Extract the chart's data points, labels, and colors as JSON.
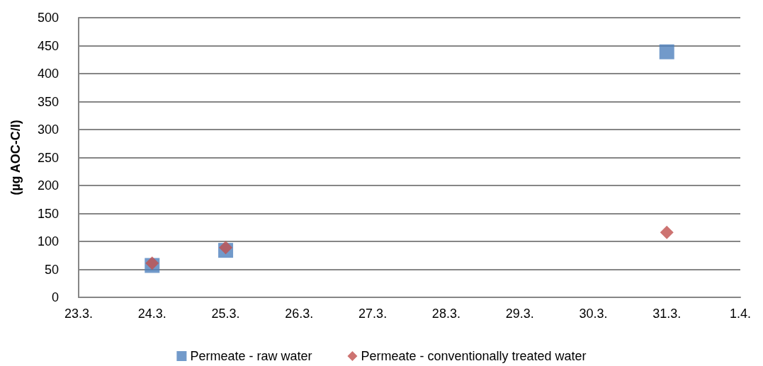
{
  "chart_data": {
    "type": "scatter",
    "ylabel": "(µg AOC-C/l)",
    "x": [
      "--03-24",
      "--03-25",
      "--03-31"
    ],
    "series": [
      {
        "name": "Permeate - raw water",
        "color": "#4f81bd",
        "marker": "square",
        "values": [
          57,
          84,
          439
        ]
      },
      {
        "name": "Permeate - conventionally treated water",
        "color": "#c0504d",
        "marker": "diamond",
        "values": [
          61,
          89,
          116
        ]
      }
    ],
    "xlim": [
      "--03-23",
      "--04-01"
    ],
    "xticks": [
      {
        "value": "--03-23",
        "label": "23.3."
      },
      {
        "value": "--03-24",
        "label": "24.3."
      },
      {
        "value": "--03-25",
        "label": "25.3."
      },
      {
        "value": "--03-26",
        "label": "26.3."
      },
      {
        "value": "--03-27",
        "label": "27.3."
      },
      {
        "value": "--03-28",
        "label": "28.3."
      },
      {
        "value": "--03-29",
        "label": "29.3."
      },
      {
        "value": "--03-30",
        "label": "30.3."
      },
      {
        "value": "--03-31",
        "label": "31.3."
      },
      {
        "value": "--04-01",
        "label": "1.4."
      }
    ],
    "ylim": [
      0,
      500
    ],
    "yticks": [
      0,
      50,
      100,
      150,
      200,
      250,
      300,
      350,
      400,
      450,
      500
    ],
    "grid": "y",
    "legend": "bottom"
  }
}
